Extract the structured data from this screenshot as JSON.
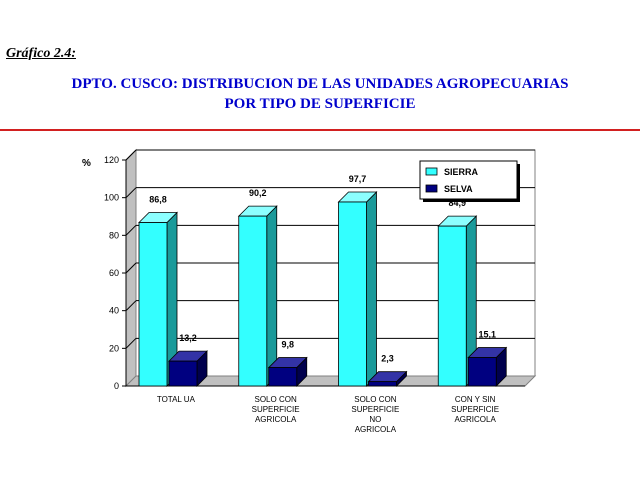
{
  "header": {
    "figure_label": "Gráfico 2.4:",
    "title_line1": "DPTO. CUSCO: DISTRIBUCION DE LAS UNIDADES AGROPECUARIAS",
    "title_line2": "POR TIPO DE SUPERFICIE"
  },
  "colors": {
    "title": "#0000cc",
    "rule": "#d22020",
    "sierra_front": "#33ffff",
    "sierra_side": "#1a9a9a",
    "selva_front": "#000080",
    "selva_side": "#00004d"
  },
  "chart_data": {
    "type": "bar",
    "ylabel": "%",
    "ylim": [
      0,
      120
    ],
    "yticks": [
      0,
      20,
      40,
      60,
      80,
      100,
      120
    ],
    "grid": true,
    "legend_position": "top-right",
    "categories": [
      [
        "TOTAL UA"
      ],
      [
        "SOLO CON",
        "SUPERFICIE",
        "AGRICOLA"
      ],
      [
        "SOLO CON",
        "SUPERFICIE",
        "NO",
        "AGRICOLA"
      ],
      [
        "CON Y SIN",
        "SUPERFICIE",
        "AGRICOLA"
      ]
    ],
    "series": [
      {
        "name": "SIERRA",
        "values": [
          86.8,
          90.2,
          97.7,
          84.9
        ],
        "labels": [
          "86,8",
          "90,2",
          "97,7",
          "84,9"
        ]
      },
      {
        "name": "SELVA",
        "values": [
          13.2,
          9.8,
          2.3,
          15.1
        ],
        "labels": [
          "13,2",
          "9,8",
          "2,3",
          "15,1"
        ]
      }
    ]
  }
}
